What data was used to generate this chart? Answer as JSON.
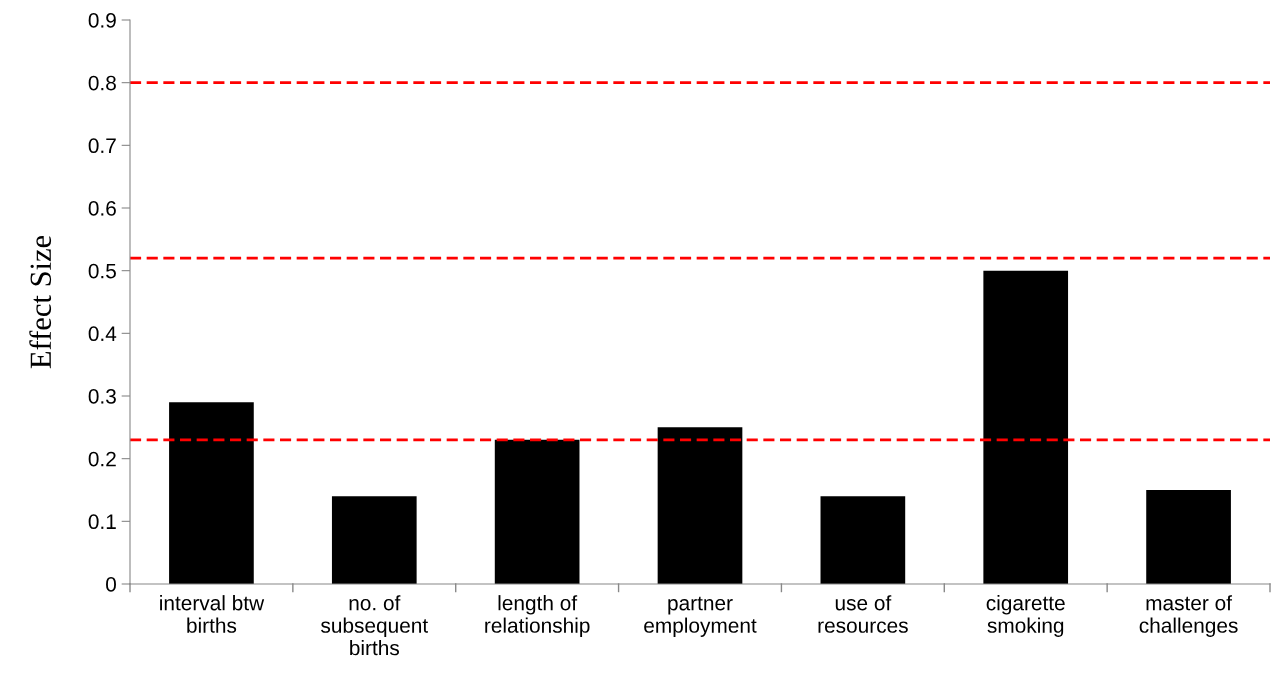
{
  "chart_data": {
    "type": "bar",
    "ylabel": "Effect Size",
    "categories": [
      "interval btw\nbirths",
      "no. of\nsubsequent\nbirths",
      "length of\nrelationship",
      "partner\nemployment",
      "use of\nresources",
      "cigarette\nsmoking",
      "master of\nchallenges"
    ],
    "values": [
      0.29,
      0.14,
      0.23,
      0.25,
      0.14,
      0.5,
      0.15
    ],
    "color": "#000000",
    "ylim": [
      0,
      0.9
    ],
    "yticks": [
      {
        "value": 0,
        "label": "0"
      },
      0.1,
      0.2,
      0.3,
      0.4,
      0.5,
      0.6,
      0.7,
      0.8,
      0.9
    ],
    "ref_lines": [
      {
        "axis": "y",
        "value": 0.8,
        "color": "#ff0000",
        "line_style": "dashed"
      },
      {
        "axis": "y",
        "value": 0.52,
        "color": "#ff0000",
        "line_style": "dashed"
      },
      {
        "axis": "y",
        "value": 0.23,
        "color": "#ff0000",
        "line_style": "dashed"
      }
    ],
    "grid": false,
    "legend": false
  }
}
